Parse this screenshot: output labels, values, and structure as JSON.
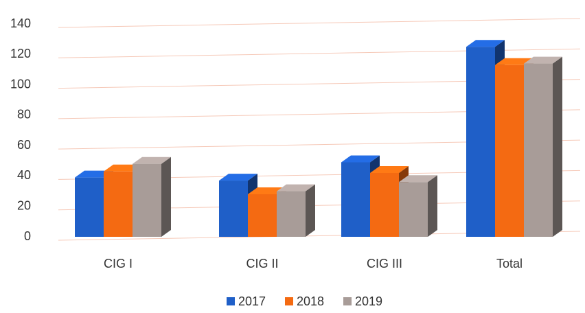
{
  "chart_data": {
    "type": "bar",
    "bar_style": "3d",
    "categories": [
      "CIG I",
      "CIG II",
      "CIG III",
      "Total"
    ],
    "series": [
      {
        "name": "2017",
        "color": "#1f5fc8",
        "values": [
          39,
          37,
          49,
          125
        ]
      },
      {
        "name": "2018",
        "color": "#f46a12",
        "values": [
          43,
          28,
          42,
          113
        ]
      },
      {
        "name": "2019",
        "color": "#a89c98",
        "values": [
          48,
          30,
          36,
          114
        ]
      }
    ],
    "ylim": [
      0,
      140
    ],
    "yticks": [
      0,
      20,
      40,
      60,
      80,
      100,
      120,
      140
    ],
    "grid": true,
    "legend": "bottom"
  }
}
